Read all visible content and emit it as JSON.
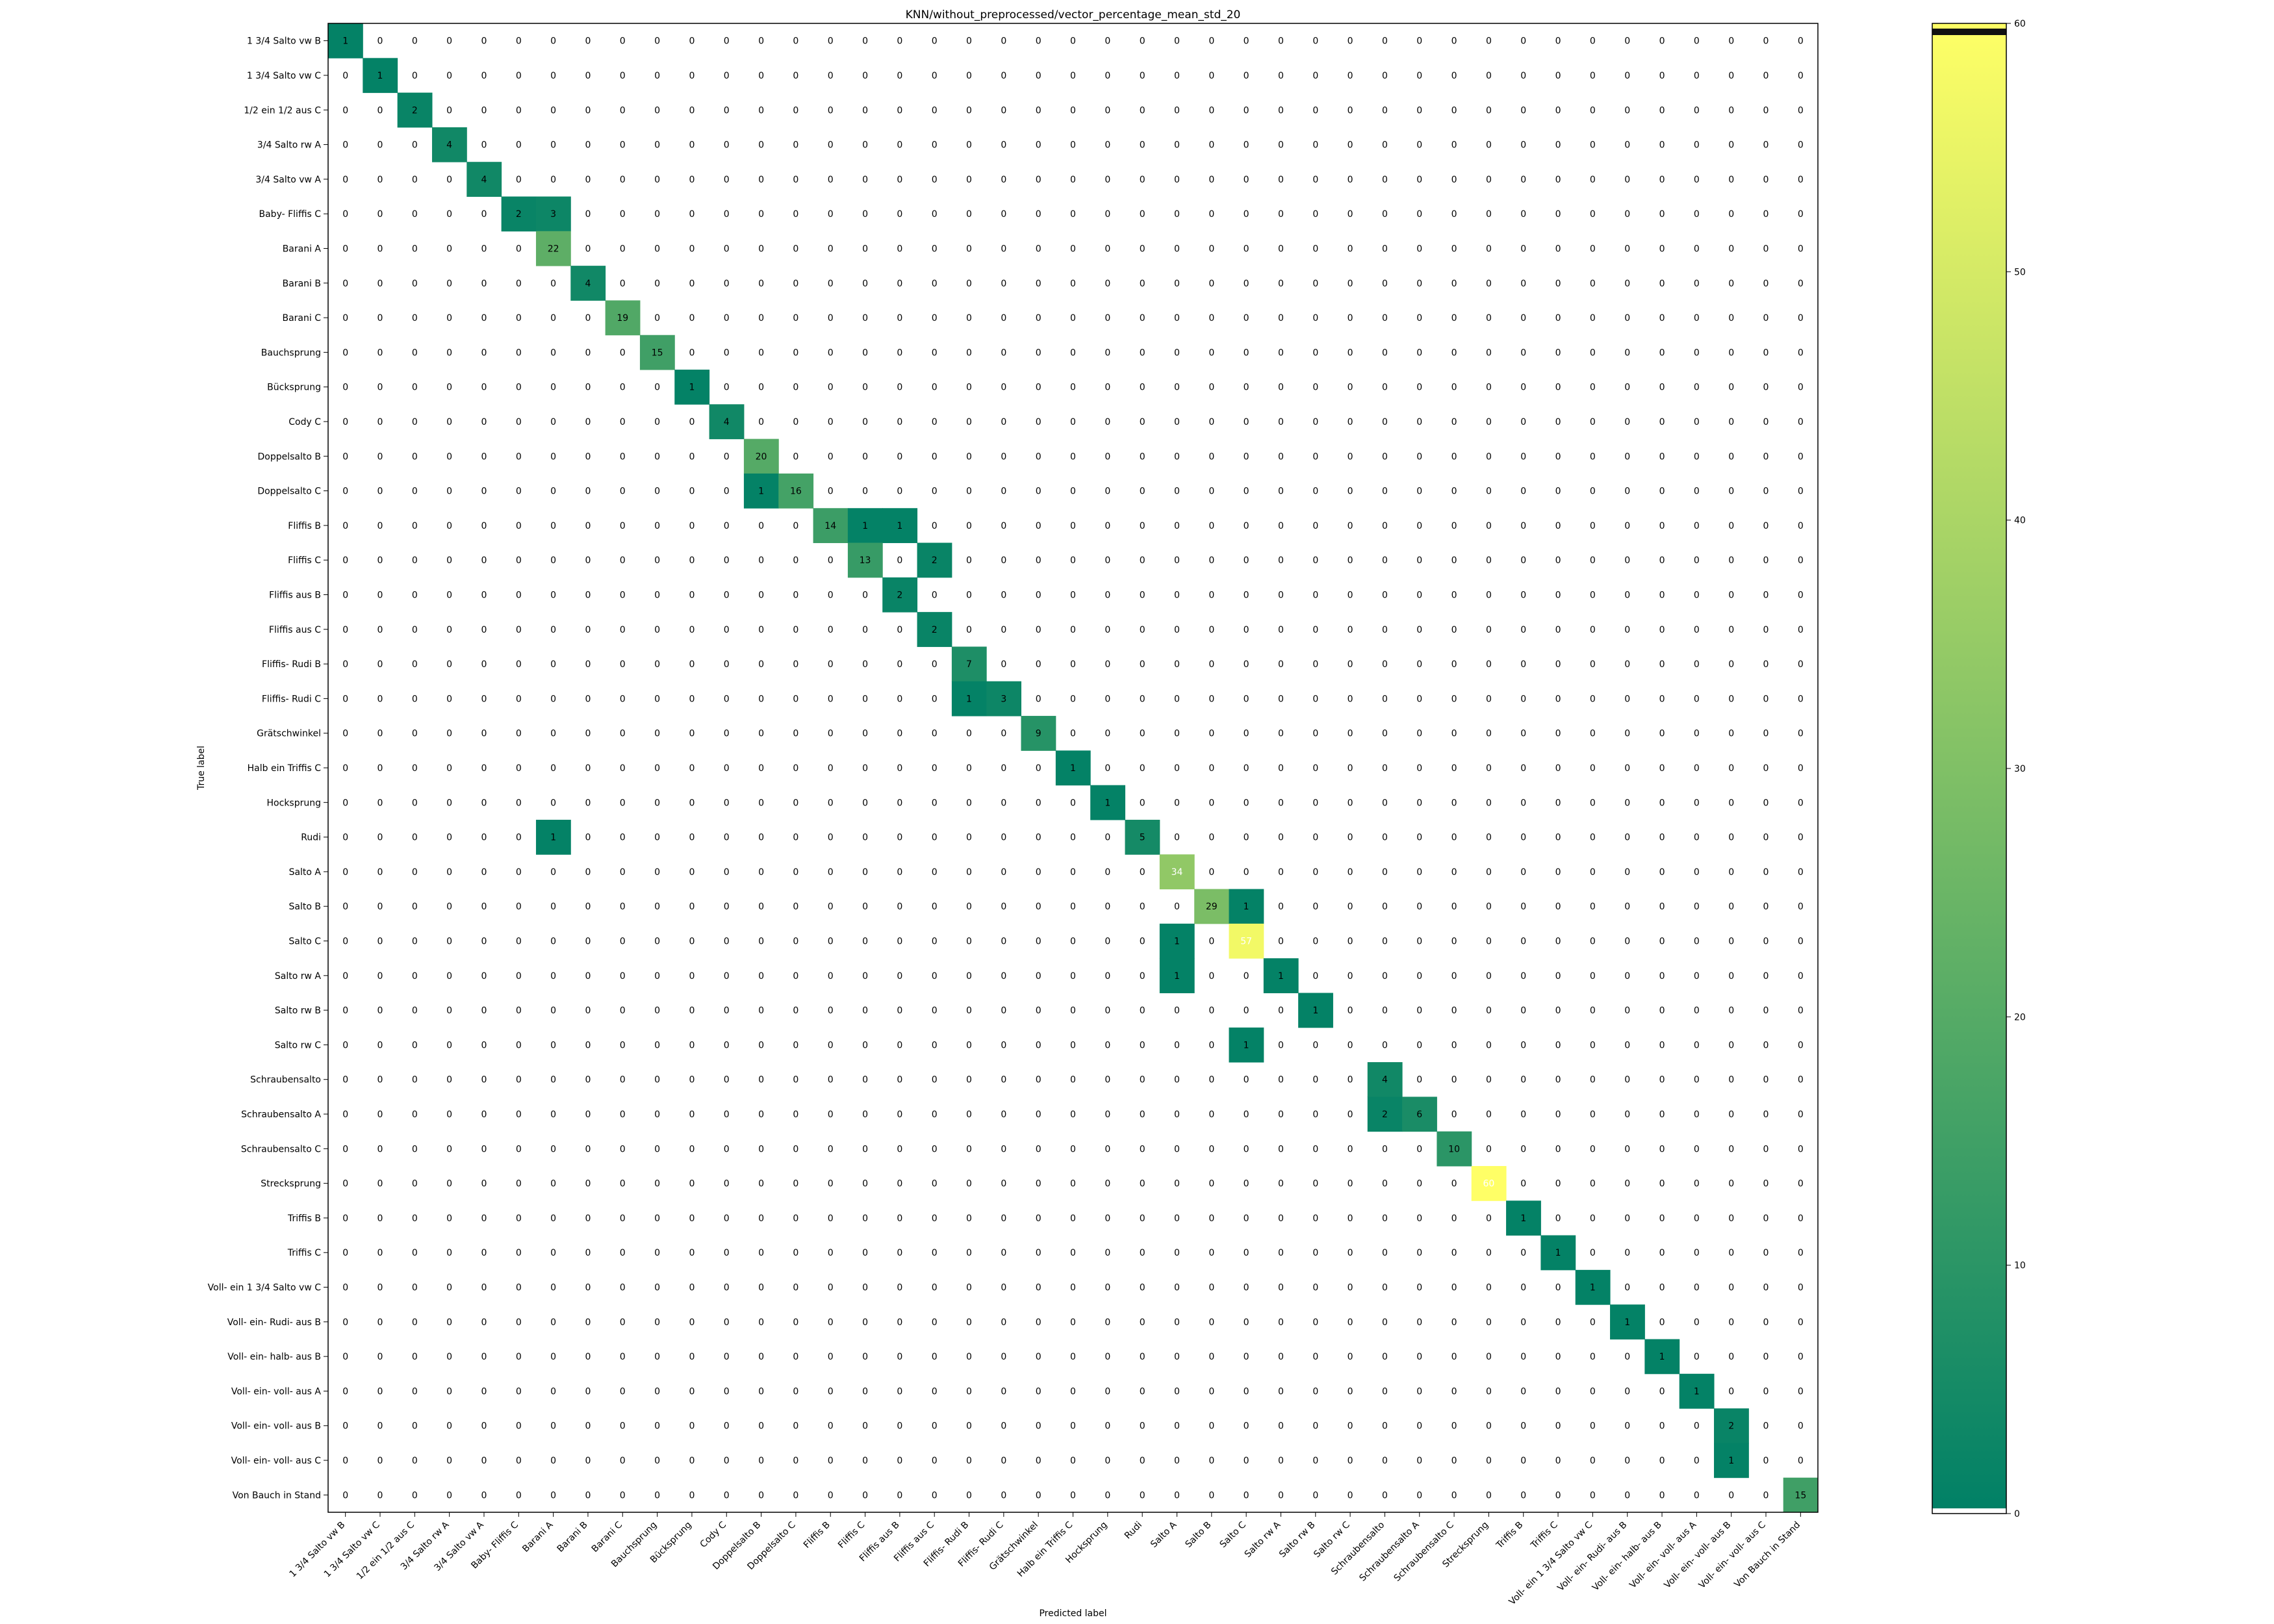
{
  "chart_data": {
    "type": "heatmap",
    "title": "KNN/without_preprocessed/vector_percentage_mean_std_20",
    "xlabel": "Predicted label",
    "ylabel": "True label",
    "labels": [
      "1 3/4 Salto vw B",
      "1 3/4 Salto vw C",
      "1/2 ein 1/2 aus C",
      "3/4 Salto rw A",
      "3/4 Salto vw A",
      "Baby- Fliffis C",
      "Barani A",
      "Barani B",
      "Barani C",
      "Bauchsprung",
      "Bücksprung",
      "Cody C",
      "Doppelsalto B",
      "Doppelsalto C",
      "Fliffis B",
      "Fliffis C",
      "Fliffis aus B",
      "Fliffis aus C",
      "Fliffis- Rudi B",
      "Fliffis- Rudi C",
      "Grätschwinkel",
      "Halb ein Triffis C",
      "Hocksprung",
      "Rudi",
      "Salto A",
      "Salto B",
      "Salto C",
      "Salto rw A",
      "Salto rw B",
      "Salto rw C",
      "Schraubensalto",
      "Schraubensalto A",
      "Schraubensalto C",
      "Strecksprung",
      "Triffis B",
      "Triffis C",
      "Voll- ein 1 3/4 Salto vw C",
      "Voll- ein- Rudi- aus B",
      "Voll- ein- halb- aus B",
      "Voll- ein- voll- aus A",
      "Voll- ein- voll- aus B",
      "Voll- ein- voll- aus C",
      "Von Bauch in Stand"
    ],
    "cells": [
      {
        "row": 0,
        "col": 0,
        "value": 1
      },
      {
        "row": 1,
        "col": 1,
        "value": 1
      },
      {
        "row": 2,
        "col": 2,
        "value": 2
      },
      {
        "row": 3,
        "col": 3,
        "value": 4
      },
      {
        "row": 4,
        "col": 4,
        "value": 4
      },
      {
        "row": 5,
        "col": 5,
        "value": 2
      },
      {
        "row": 5,
        "col": 6,
        "value": 3
      },
      {
        "row": 6,
        "col": 6,
        "value": 22
      },
      {
        "row": 7,
        "col": 7,
        "value": 4
      },
      {
        "row": 8,
        "col": 8,
        "value": 19
      },
      {
        "row": 9,
        "col": 9,
        "value": 15
      },
      {
        "row": 10,
        "col": 10,
        "value": 1
      },
      {
        "row": 11,
        "col": 11,
        "value": 4
      },
      {
        "row": 12,
        "col": 12,
        "value": 20
      },
      {
        "row": 13,
        "col": 12,
        "value": 1
      },
      {
        "row": 13,
        "col": 13,
        "value": 16
      },
      {
        "row": 14,
        "col": 14,
        "value": 14
      },
      {
        "row": 14,
        "col": 15,
        "value": 1
      },
      {
        "row": 14,
        "col": 16,
        "value": 1
      },
      {
        "row": 15,
        "col": 15,
        "value": 13
      },
      {
        "row": 15,
        "col": 17,
        "value": 2
      },
      {
        "row": 16,
        "col": 16,
        "value": 2
      },
      {
        "row": 17,
        "col": 17,
        "value": 2
      },
      {
        "row": 18,
        "col": 18,
        "value": 7
      },
      {
        "row": 19,
        "col": 18,
        "value": 1
      },
      {
        "row": 19,
        "col": 19,
        "value": 3
      },
      {
        "row": 20,
        "col": 20,
        "value": 9
      },
      {
        "row": 21,
        "col": 21,
        "value": 1
      },
      {
        "row": 22,
        "col": 22,
        "value": 1
      },
      {
        "row": 23,
        "col": 6,
        "value": 1
      },
      {
        "row": 23,
        "col": 23,
        "value": 5
      },
      {
        "row": 24,
        "col": 24,
        "value": 34
      },
      {
        "row": 25,
        "col": 25,
        "value": 29
      },
      {
        "row": 25,
        "col": 26,
        "value": 1
      },
      {
        "row": 26,
        "col": 24,
        "value": 1
      },
      {
        "row": 26,
        "col": 26,
        "value": 57
      },
      {
        "row": 27,
        "col": 24,
        "value": 1
      },
      {
        "row": 27,
        "col": 27,
        "value": 1
      },
      {
        "row": 28,
        "col": 28,
        "value": 1
      },
      {
        "row": 29,
        "col": 26,
        "value": 1
      },
      {
        "row": 30,
        "col": 30,
        "value": 4
      },
      {
        "row": 31,
        "col": 30,
        "value": 2
      },
      {
        "row": 31,
        "col": 31,
        "value": 6
      },
      {
        "row": 32,
        "col": 32,
        "value": 10
      },
      {
        "row": 33,
        "col": 33,
        "value": 60
      },
      {
        "row": 34,
        "col": 34,
        "value": 1
      },
      {
        "row": 35,
        "col": 35,
        "value": 1
      },
      {
        "row": 36,
        "col": 36,
        "value": 1
      },
      {
        "row": 37,
        "col": 37,
        "value": 1
      },
      {
        "row": 38,
        "col": 38,
        "value": 1
      },
      {
        "row": 39,
        "col": 39,
        "value": 1
      },
      {
        "row": 40,
        "col": 40,
        "value": 2
      },
      {
        "row": 41,
        "col": 40,
        "value": 1
      },
      {
        "row": 42,
        "col": 42,
        "value": 15
      }
    ],
    "default_value": 0,
    "colormap": "summer",
    "colorbar": {
      "range": [
        0,
        60
      ],
      "ticks": [
        0,
        10,
        20,
        30,
        40,
        50,
        60
      ]
    }
  }
}
